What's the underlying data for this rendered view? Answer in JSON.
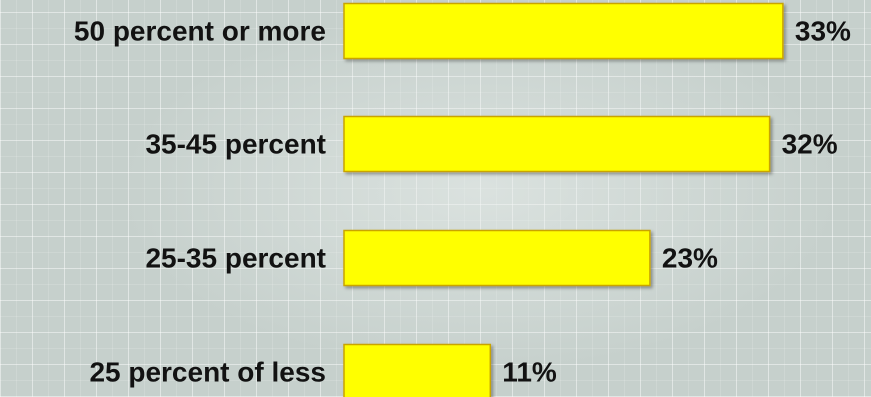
{
  "chart_data": {
    "type": "bar",
    "orientation": "horizontal",
    "categories": [
      "50 percent or more",
      "35-45 percent",
      "25-35 percent",
      "25 percent of less"
    ],
    "values": [
      33,
      32,
      23,
      11
    ],
    "value_labels": [
      "33%",
      "32%",
      "23%",
      "11%"
    ],
    "unit": "%",
    "title": "",
    "xlabel": "",
    "ylabel": "",
    "xlim": [
      0,
      33
    ],
    "grid": true,
    "legend": "none",
    "colors": {
      "bar": "#ffff00",
      "bar_edge": "#c9a400",
      "text": "#121212",
      "background": "#c6d0cc"
    }
  }
}
